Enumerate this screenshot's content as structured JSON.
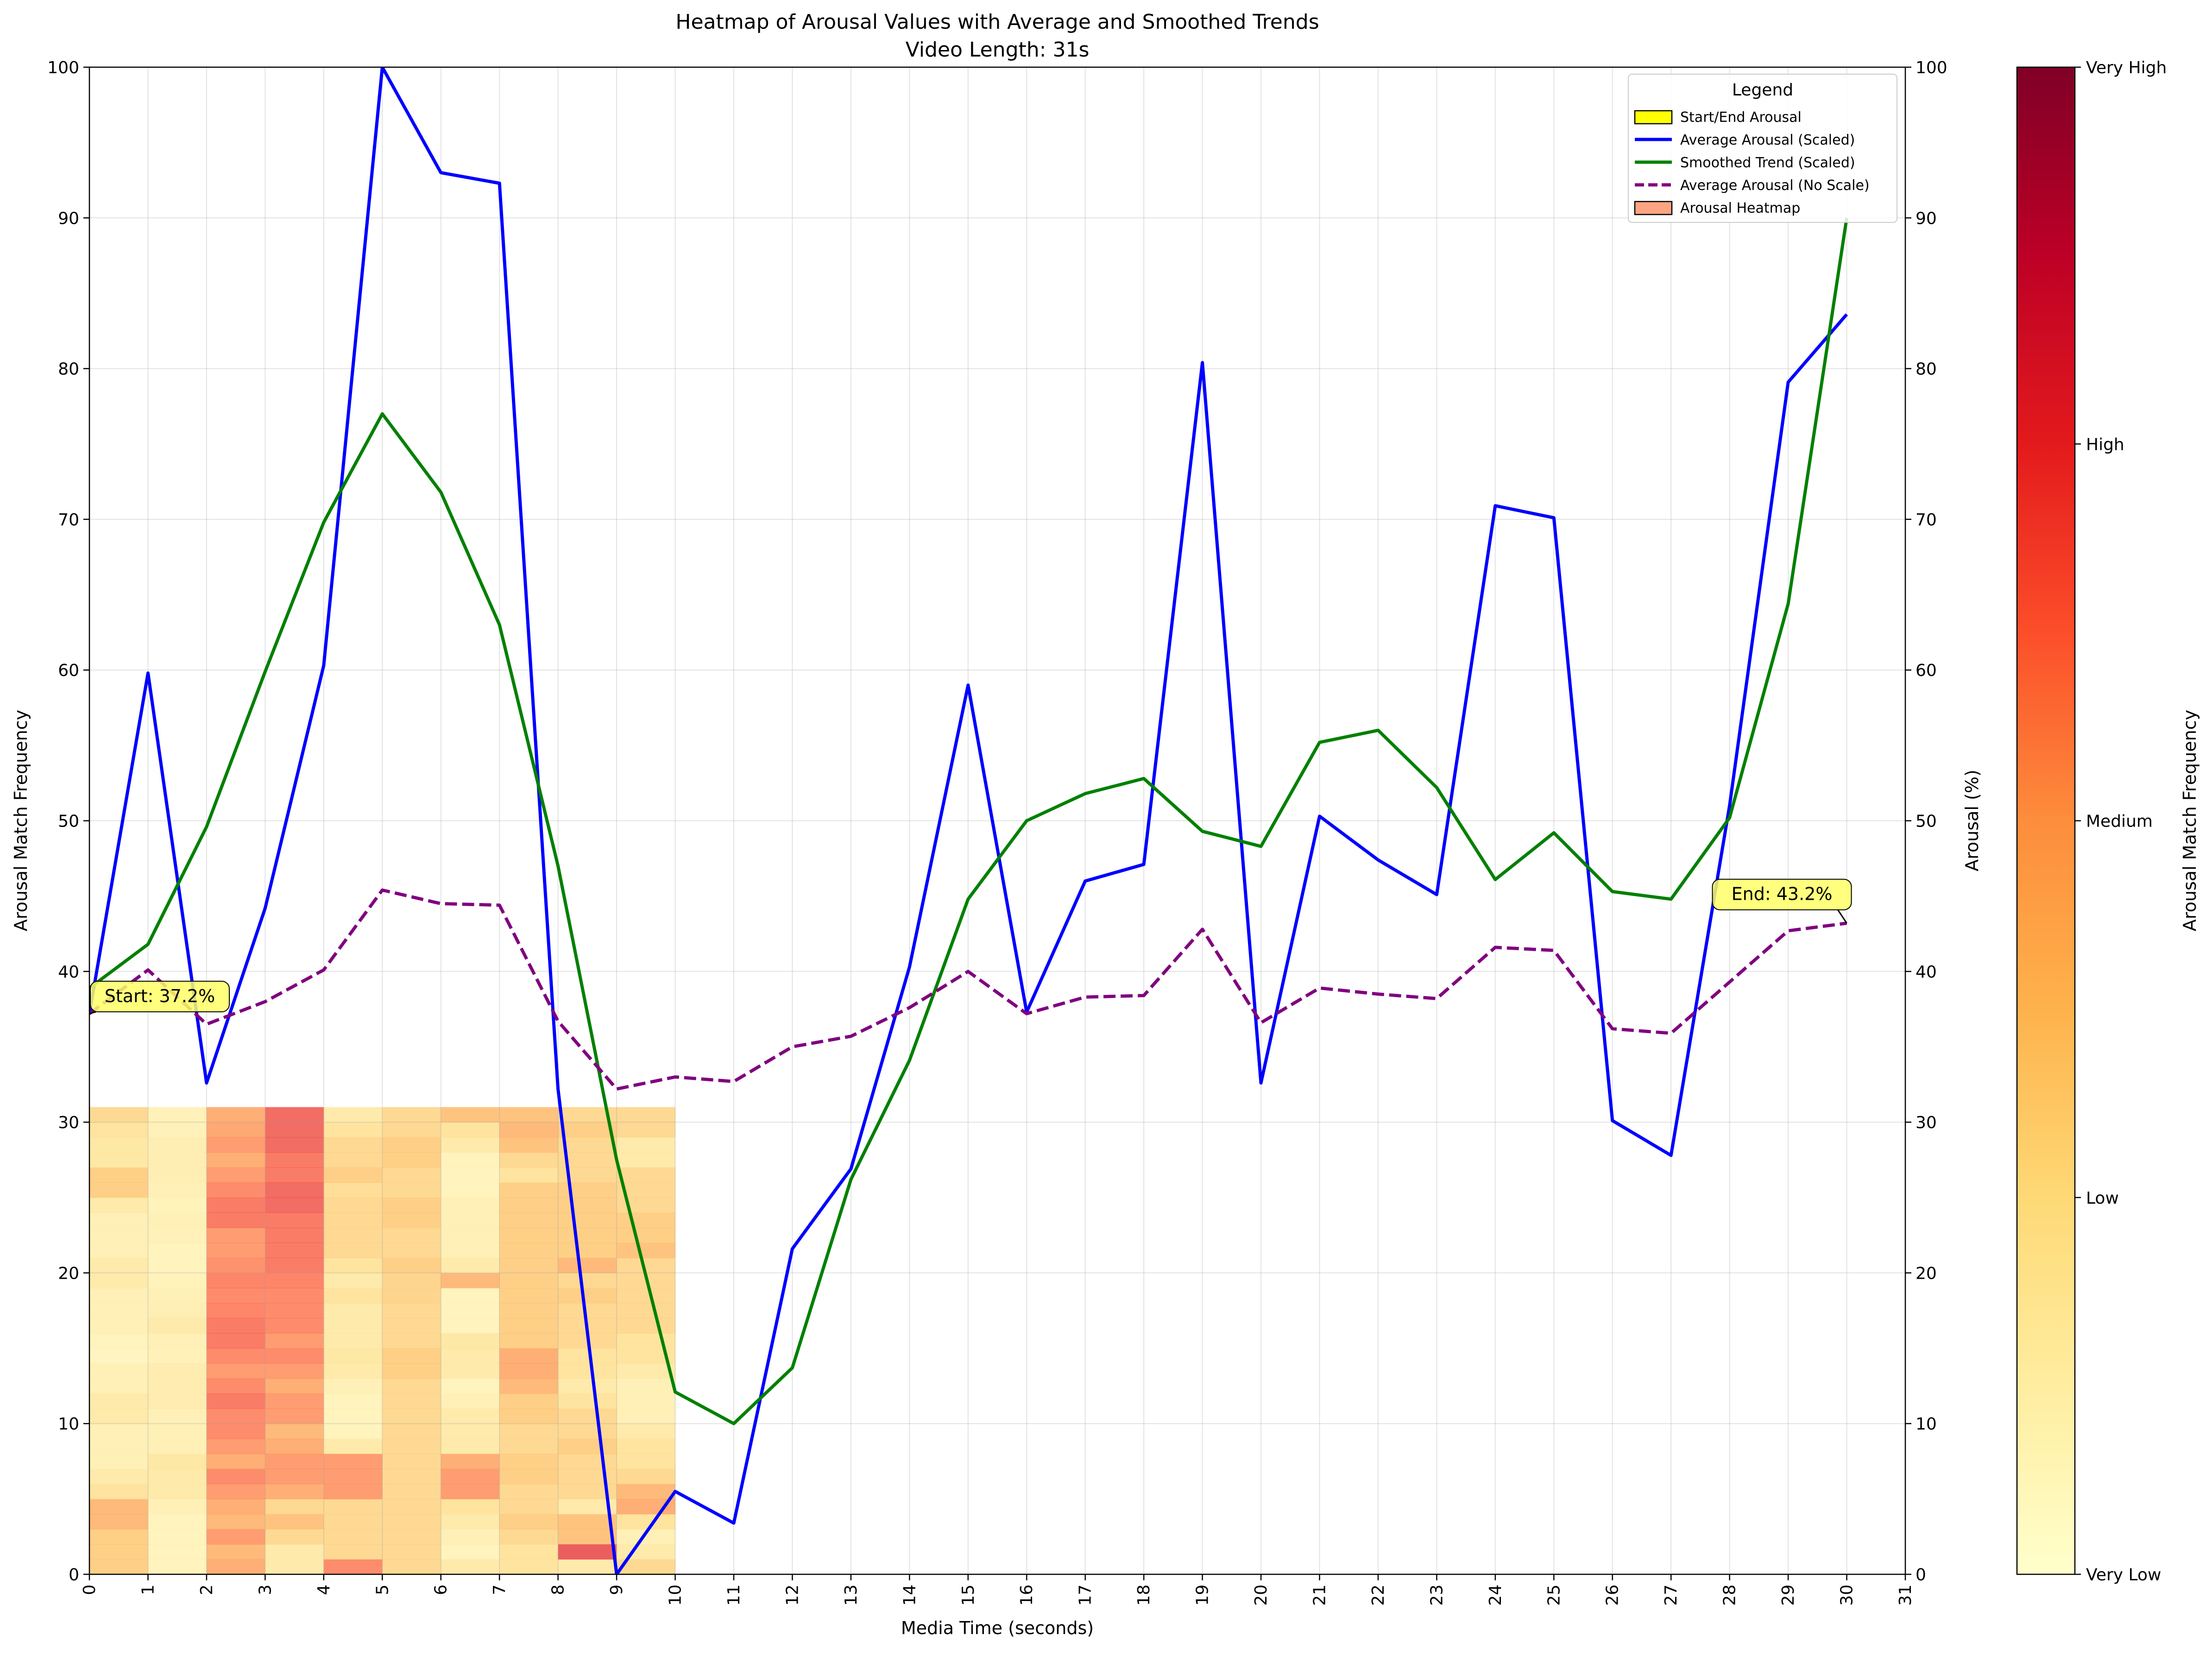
{
  "chart_data": {
    "type": "line",
    "title": "Heatmap of Arousal Values with Average and Smoothed Trends",
    "subtitle": "Video Length: 31s",
    "xlabel": "Media Time (seconds)",
    "ylabel_left": "Arousal Match Frequency",
    "ylabel_right": "Arousal (%)",
    "xlim": [
      0,
      31
    ],
    "ylim": [
      0,
      100
    ],
    "x_ticks": [
      0,
      1,
      2,
      3,
      4,
      5,
      6,
      7,
      8,
      9,
      10,
      11,
      12,
      13,
      14,
      15,
      16,
      17,
      18,
      19,
      20,
      21,
      22,
      23,
      24,
      25,
      26,
      27,
      28,
      29,
      30,
      31
    ],
    "y_ticks": [
      0,
      10,
      20,
      30,
      40,
      50,
      60,
      70,
      80,
      90,
      100
    ],
    "grid": true,
    "legend": {
      "title": "Legend",
      "placement": "top-right",
      "entries": [
        {
          "label": "Start/End Arousal",
          "kind": "patch",
          "color": "#ffff00"
        },
        {
          "label": "Average Arousal (Scaled)",
          "kind": "line",
          "color": "#0000ff",
          "dash": false
        },
        {
          "label": "Smoothed Trend (Scaled)",
          "kind": "line",
          "color": "#008000",
          "dash": false
        },
        {
          "label": "Average Arousal (No Scale)",
          "kind": "line",
          "color": "#800080",
          "dash": true
        },
        {
          "label": "Arousal Heatmap",
          "kind": "patch",
          "color": "#fca582"
        }
      ]
    },
    "x": [
      0,
      1,
      2,
      3,
      4,
      5,
      6,
      7,
      8,
      9,
      10,
      11,
      12,
      13,
      14,
      15,
      16,
      17,
      18,
      19,
      20,
      21,
      22,
      23,
      24,
      25,
      26,
      27,
      28,
      29,
      30
    ],
    "series": [
      {
        "name": "Average Arousal (Scaled)",
        "color": "#0000ff",
        "dash": false,
        "values": [
          37.2,
          59.8,
          32.6,
          44.2,
          60.3,
          100,
          93.0,
          92.3,
          32.2,
          0,
          5.5,
          3.4,
          21.6,
          26.9,
          40.3,
          59.0,
          37.3,
          46.0,
          47.1,
          80.4,
          32.6,
          50.3,
          47.4,
          45.1,
          70.9,
          70.1,
          30.1,
          27.8,
          51.0,
          79.1,
          83.6
        ]
      },
      {
        "name": "Smoothed Trend (Scaled)",
        "color": "#008000",
        "dash": false,
        "values": [
          38.9,
          41.8,
          49.6,
          59.9,
          69.8,
          77.0,
          71.8,
          63.0,
          47.0,
          27.5,
          12.1,
          10.0,
          13.7,
          26.2,
          34.1,
          44.8,
          50.0,
          51.8,
          52.8,
          49.3,
          48.3,
          55.2,
          56.0,
          52.2,
          46.1,
          49.2,
          45.3,
          44.8,
          50.2,
          64.4,
          90.0
        ]
      },
      {
        "name": "Average Arousal (No Scale)",
        "color": "#800080",
        "dash": true,
        "values": [
          37.2,
          40.1,
          36.5,
          38.0,
          40.1,
          45.4,
          44.5,
          44.4,
          36.7,
          32.2,
          33.0,
          32.7,
          35.0,
          35.7,
          37.6,
          40.0,
          37.2,
          38.3,
          38.4,
          42.8,
          36.6,
          38.9,
          38.5,
          38.2,
          41.6,
          41.4,
          36.2,
          35.9,
          39.3,
          42.7,
          43.2
        ]
      }
    ],
    "annotations": [
      {
        "text": "Start: 37.2%",
        "x": 0,
        "y": 37.2
      },
      {
        "text": "End: 43.2%",
        "x": 30,
        "y": 43.2
      }
    ],
    "heatmap": {
      "x_range": [
        0,
        10
      ],
      "y_range": [
        0,
        31
      ],
      "columns": 10,
      "rows": 31,
      "column_levels": [
        [
          0.35,
          0.35,
          0.35,
          0.45,
          0.45,
          0.25,
          0.2,
          0.15,
          0.15,
          0.15,
          0.2,
          0.2,
          0.15,
          0.15,
          0.1,
          0.12,
          0.15,
          0.15,
          0.15,
          0.2,
          0.2,
          0.15,
          0.15,
          0.15,
          0.2,
          0.35,
          0.35,
          0.22,
          0.22,
          0.25,
          0.3
        ],
        [
          0.12,
          0.12,
          0.12,
          0.12,
          0.15,
          0.2,
          0.2,
          0.22,
          0.15,
          0.15,
          0.15,
          0.18,
          0.18,
          0.18,
          0.14,
          0.15,
          0.2,
          0.16,
          0.15,
          0.13,
          0.12,
          0.12,
          0.14,
          0.15,
          0.13,
          0.15,
          0.16,
          0.16,
          0.16,
          0.14,
          0.14
        ],
        [
          0.5,
          0.45,
          0.55,
          0.45,
          0.5,
          0.55,
          0.6,
          0.5,
          0.55,
          0.6,
          0.6,
          0.65,
          0.6,
          0.55,
          0.6,
          0.65,
          0.65,
          0.62,
          0.6,
          0.62,
          0.58,
          0.55,
          0.55,
          0.65,
          0.65,
          0.6,
          0.55,
          0.5,
          0.55,
          0.52,
          0.5
        ],
        [
          0.2,
          0.2,
          0.3,
          0.4,
          0.3,
          0.5,
          0.55,
          0.55,
          0.5,
          0.45,
          0.55,
          0.55,
          0.5,
          0.55,
          0.6,
          0.55,
          0.6,
          0.6,
          0.6,
          0.62,
          0.65,
          0.65,
          0.65,
          0.65,
          0.7,
          0.7,
          0.65,
          0.65,
          0.7,
          0.7,
          0.7
        ],
        [
          0.6,
          0.3,
          0.3,
          0.3,
          0.3,
          0.55,
          0.55,
          0.55,
          0.2,
          0.12,
          0.12,
          0.12,
          0.15,
          0.2,
          0.22,
          0.2,
          0.2,
          0.2,
          0.25,
          0.2,
          0.25,
          0.3,
          0.3,
          0.3,
          0.3,
          0.28,
          0.35,
          0.3,
          0.3,
          0.25,
          0.2
        ],
        [
          0.3,
          0.3,
          0.3,
          0.3,
          0.3,
          0.3,
          0.3,
          0.3,
          0.3,
          0.3,
          0.3,
          0.3,
          0.3,
          0.35,
          0.35,
          0.3,
          0.3,
          0.3,
          0.32,
          0.32,
          0.35,
          0.3,
          0.3,
          0.35,
          0.35,
          0.3,
          0.3,
          0.35,
          0.35,
          0.3,
          0.3
        ],
        [
          0.2,
          0.12,
          0.15,
          0.2,
          0.25,
          0.55,
          0.55,
          0.5,
          0.2,
          0.2,
          0.2,
          0.15,
          0.12,
          0.2,
          0.2,
          0.22,
          0.12,
          0.12,
          0.12,
          0.45,
          0.2,
          0.15,
          0.15,
          0.15,
          0.15,
          0.12,
          0.12,
          0.12,
          0.2,
          0.25,
          0.4
        ],
        [
          0.25,
          0.25,
          0.3,
          0.35,
          0.3,
          0.3,
          0.35,
          0.35,
          0.3,
          0.3,
          0.35,
          0.35,
          0.45,
          0.5,
          0.5,
          0.35,
          0.35,
          0.35,
          0.35,
          0.35,
          0.35,
          0.35,
          0.35,
          0.35,
          0.35,
          0.35,
          0.25,
          0.3,
          0.4,
          0.45,
          0.4
        ],
        [
          0.2,
          0.75,
          0.4,
          0.4,
          0.2,
          0.3,
          0.3,
          0.3,
          0.35,
          0.3,
          0.3,
          0.25,
          0.2,
          0.25,
          0.25,
          0.3,
          0.3,
          0.3,
          0.35,
          0.3,
          0.45,
          0.35,
          0.35,
          0.35,
          0.35,
          0.35,
          0.3,
          0.3,
          0.3,
          0.35,
          0.3
        ],
        [
          0.3,
          0.2,
          0.15,
          0.25,
          0.5,
          0.45,
          0.3,
          0.25,
          0.25,
          0.2,
          0.15,
          0.15,
          0.15,
          0.2,
          0.25,
          0.25,
          0.3,
          0.3,
          0.3,
          0.3,
          0.3,
          0.4,
          0.35,
          0.35,
          0.3,
          0.3,
          0.3,
          0.2,
          0.2,
          0.3,
          0.3
        ]
      ]
    },
    "colorbar": {
      "label": "Arousal Match Frequency",
      "tick_labels": [
        "Very Low",
        "Low",
        "Medium",
        "High",
        "Very High"
      ],
      "stops": [
        "#ffffcc",
        "#ffeda0",
        "#fed976",
        "#feb24c",
        "#fd8d3c",
        "#fc4e2a",
        "#e31a1c",
        "#bd0026",
        "#800026"
      ]
    }
  }
}
